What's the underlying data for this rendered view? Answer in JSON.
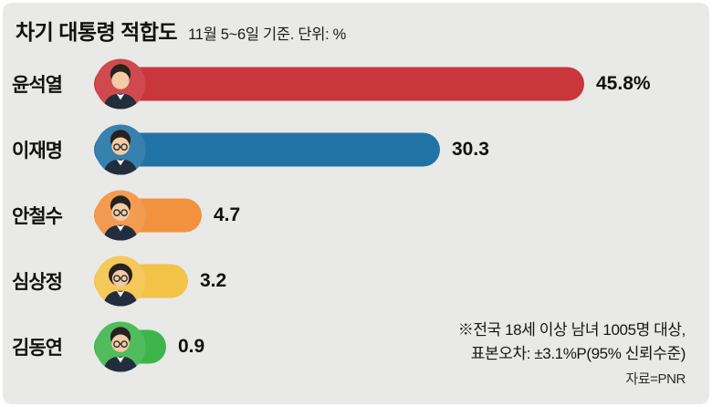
{
  "header": {
    "title": "차기 대통령 적합도",
    "subtitle": "11월 5~6일 기준. 단위: %"
  },
  "chart_data": {
    "type": "bar",
    "orientation": "horizontal",
    "title": "차기 대통령 적합도",
    "subtitle": "11월 5~6일 기준. 단위: %",
    "unit": "%",
    "xlim": [
      0,
      50
    ],
    "categories": [
      "윤석열",
      "이재명",
      "안철수",
      "심상정",
      "김동연"
    ],
    "values": [
      45.8,
      30.3,
      4.7,
      3.2,
      0.9
    ],
    "value_labels": [
      "45.8%",
      "30.3",
      "4.7",
      "3.2",
      "0.9"
    ],
    "bar_colors": [
      "#c9363b",
      "#2173a5",
      "#f2913e",
      "#f3c348",
      "#3eb54b"
    ],
    "legend": "none",
    "grid": false
  },
  "footnote": {
    "line1": "※전국 18세 이상 남녀 1005명 대상,",
    "line2": "표본오차: ±3.1%P(95% 신뢰수준)",
    "source": "자료=PNR"
  }
}
